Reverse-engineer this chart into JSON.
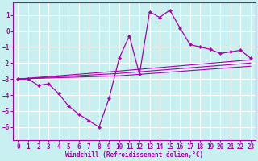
{
  "xlabel": "Windchill (Refroidissement éolien,°C)",
  "bg_color": "#c8f0f0",
  "grid_color": "#ffffff",
  "line_color": "#aa00aa",
  "xlim": [
    -0.5,
    23.5
  ],
  "ylim": [
    -6.8,
    1.8
  ],
  "yticks": [
    1,
    0,
    -1,
    -2,
    -3,
    -4,
    -5,
    -6
  ],
  "xticks": [
    0,
    1,
    2,
    3,
    4,
    5,
    6,
    7,
    8,
    9,
    10,
    11,
    12,
    13,
    14,
    15,
    16,
    17,
    18,
    19,
    20,
    21,
    22,
    23
  ],
  "series": [
    {
      "x": [
        0,
        1,
        2,
        3,
        4,
        5,
        6,
        7,
        8,
        9,
        10,
        11,
        12,
        13,
        14,
        15,
        16,
        17,
        18,
        19,
        20,
        21,
        22,
        23
      ],
      "y": [
        -3.0,
        -3.0,
        -3.4,
        -3.3,
        -3.9,
        -4.7,
        -5.2,
        -5.6,
        -6.0,
        -4.2,
        -1.7,
        -0.3,
        -2.7,
        1.2,
        0.85,
        1.3,
        0.2,
        -0.85,
        -1.0,
        -1.15,
        -1.4,
        -1.3,
        -1.2,
        -1.7
      ]
    },
    {
      "x": [
        0,
        10,
        23
      ],
      "y": [
        -3.0,
        -2.5,
        -1.8
      ]
    },
    {
      "x": [
        0,
        10,
        23
      ],
      "y": [
        -3.0,
        -2.65,
        -2.0
      ]
    },
    {
      "x": [
        0,
        10,
        23
      ],
      "y": [
        -3.0,
        -2.8,
        -2.2
      ]
    }
  ]
}
